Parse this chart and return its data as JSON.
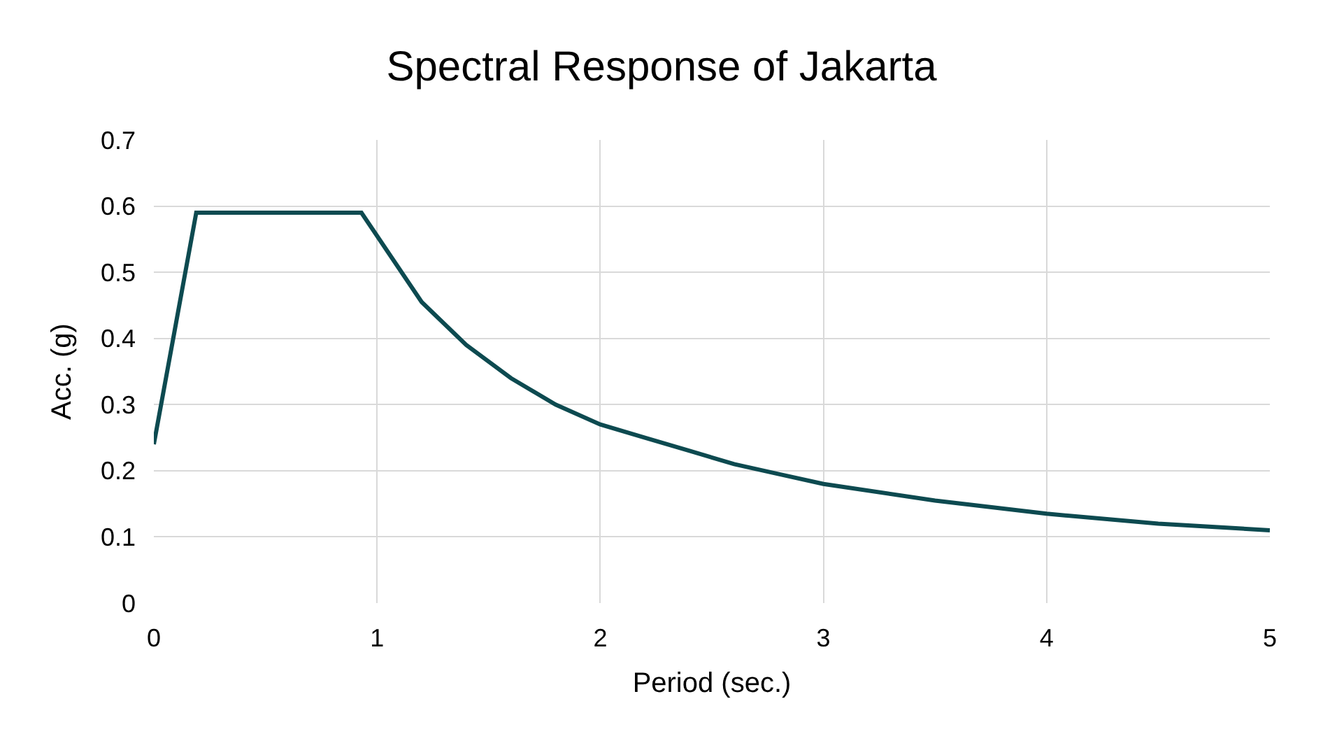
{
  "chart_data": {
    "type": "line",
    "title": "Spectral Response of Jakarta",
    "xlabel": "Period (sec.)",
    "ylabel": "Acc. (g)",
    "x": [
      0,
      0.19,
      0.93,
      1.2,
      1.4,
      1.6,
      1.8,
      2.0,
      2.2,
      2.4,
      2.6,
      2.8,
      3.0,
      3.5,
      4.0,
      4.5,
      5.0
    ],
    "series": [
      {
        "color": "#0d4a50",
        "values": [
          0.24,
          0.59,
          0.59,
          0.455,
          0.39,
          0.34,
          0.3,
          0.27,
          0.25,
          0.23,
          0.21,
          0.195,
          0.18,
          0.155,
          0.135,
          0.12,
          0.11
        ]
      }
    ],
    "xlim": [
      0,
      5
    ],
    "xticks": [
      0,
      1,
      2,
      3,
      4,
      5
    ],
    "ylim": [
      0,
      0.7
    ],
    "yticks": [
      0,
      0.1,
      0.2,
      0.3,
      0.4,
      0.5,
      0.6,
      0.7
    ],
    "grid": true,
    "marker": "none",
    "line_style": "solid"
  }
}
